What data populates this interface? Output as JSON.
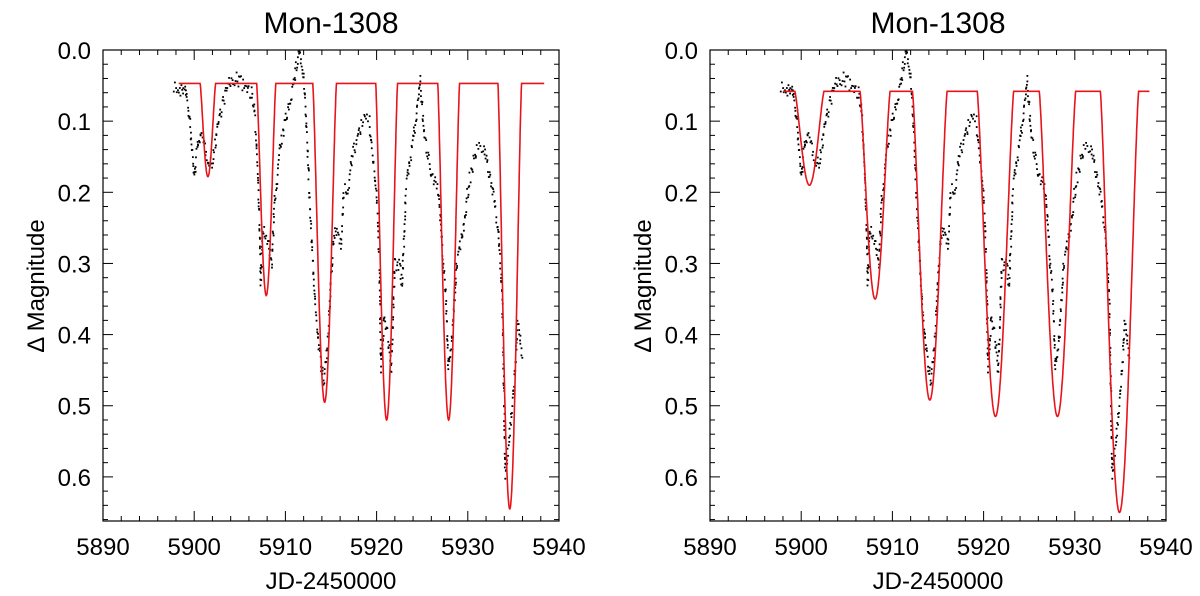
{
  "chart_data": [
    {
      "type": "scatter",
      "title": "Mon-1308",
      "xlabel": "JD-2450000",
      "ylabel": "Δ Magnitude",
      "xlim": [
        5890,
        5940
      ],
      "ylim": [
        0.0,
        0.662
      ],
      "y_inverted": true,
      "x_ticks": [
        "5890",
        "5900",
        "5910",
        "5920",
        "5930",
        "5940"
      ],
      "y_ticks": [
        "0.0",
        "0.1",
        "0.2",
        "0.3",
        "0.4",
        "0.5",
        "0.6"
      ],
      "colors": {
        "data": "#000000",
        "model": "#e8141b"
      },
      "observed": [
        [
          5897.8,
          0.05
        ],
        [
          5898.5,
          0.06
        ],
        [
          5899,
          0.05
        ],
        [
          5899.5,
          0.1
        ],
        [
          5900,
          0.18
        ],
        [
          5900.5,
          0.12
        ],
        [
          5901,
          0.13
        ],
        [
          5901.5,
          0.15
        ],
        [
          5902,
          0.16
        ],
        [
          5902.5,
          0.11
        ],
        [
          5903,
          0.08
        ],
        [
          5903.7,
          0.05
        ],
        [
          5904.5,
          0.04
        ],
        [
          5905.5,
          0.05
        ],
        [
          5906.3,
          0.06
        ],
        [
          5906.7,
          0.1
        ],
        [
          5907,
          0.18
        ],
        [
          5907.3,
          0.33
        ],
        [
          5907.5,
          0.25
        ],
        [
          5908,
          0.27
        ],
        [
          5908.5,
          0.3
        ],
        [
          5908.8,
          0.22
        ],
        [
          5909.3,
          0.15
        ],
        [
          5910,
          0.1
        ],
        [
          5911,
          0.04
        ],
        [
          5911.5,
          0.0
        ],
        [
          5912,
          0.04
        ],
        [
          5912.3,
          0.1
        ],
        [
          5912.6,
          0.2
        ],
        [
          5913,
          0.3
        ],
        [
          5913.3,
          0.36
        ],
        [
          5913.7,
          0.42
        ],
        [
          5914.2,
          0.47
        ],
        [
          5914.7,
          0.4
        ],
        [
          5915.1,
          0.3
        ],
        [
          5915.5,
          0.25
        ],
        [
          5916.1,
          0.27
        ],
        [
          5916.4,
          0.2
        ],
        [
          5917,
          0.19
        ],
        [
          5917.3,
          0.15
        ],
        [
          5918.5,
          0.1
        ],
        [
          5919.2,
          0.1
        ],
        [
          5919.5,
          0.14
        ],
        [
          5920,
          0.2
        ],
        [
          5920.3,
          0.3
        ],
        [
          5920.5,
          0.45
        ],
        [
          5920.8,
          0.38
        ],
        [
          5921.2,
          0.4
        ],
        [
          5921.6,
          0.45
        ],
        [
          5922,
          0.3
        ],
        [
          5922.5,
          0.3
        ],
        [
          5922.8,
          0.33
        ],
        [
          5923.2,
          0.2
        ],
        [
          5923.7,
          0.15
        ],
        [
          5924.3,
          0.1
        ],
        [
          5924.8,
          0.04
        ],
        [
          5925.2,
          0.12
        ],
        [
          5926,
          0.17
        ],
        [
          5926.8,
          0.2
        ],
        [
          5927.3,
          0.3
        ],
        [
          5927.6,
          0.35
        ],
        [
          5927.9,
          0.45
        ],
        [
          5928.3,
          0.4
        ],
        [
          5928.8,
          0.3
        ],
        [
          5929.5,
          0.25
        ],
        [
          5930.2,
          0.18
        ],
        [
          5931,
          0.14
        ],
        [
          5931.8,
          0.14
        ],
        [
          5932.3,
          0.17
        ],
        [
          5932.8,
          0.2
        ],
        [
          5933.3,
          0.25
        ],
        [
          5933.8,
          0.35
        ],
        [
          5934.1,
          0.6
        ],
        [
          5934.5,
          0.55
        ],
        [
          5935,
          0.48
        ],
        [
          5935.5,
          0.38
        ],
        [
          5936,
          0.43
        ]
      ],
      "model": {
        "range": [
          5898.3,
          5938.4
        ],
        "baseline": 0.047,
        "dips": [
          {
            "center": 5901.5,
            "depth": 0.178,
            "halfwidth": 0.85
          },
          {
            "center": 5907.9,
            "depth": 0.345,
            "halfwidth": 1.05
          },
          {
            "center": 5914.3,
            "depth": 0.495,
            "halfwidth": 1.3
          },
          {
            "center": 5921.1,
            "depth": 0.52,
            "halfwidth": 1.2
          },
          {
            "center": 5927.9,
            "depth": 0.52,
            "halfwidth": 1.2
          },
          {
            "center": 5934.6,
            "depth": 0.645,
            "halfwidth": 1.3
          }
        ]
      }
    },
    {
      "type": "scatter",
      "title": "Mon-1308",
      "xlabel": "JD-2450000",
      "ylabel": "Δ Magnitude",
      "xlim": [
        5890,
        5940
      ],
      "ylim": [
        0.0,
        0.662
      ],
      "y_inverted": true,
      "x_ticks": [
        "5890",
        "5900",
        "5910",
        "5920",
        "5930",
        "5940"
      ],
      "y_ticks": [
        "0.0",
        "0.1",
        "0.2",
        "0.3",
        "0.4",
        "0.5",
        "0.6"
      ],
      "colors": {
        "data": "#000000",
        "model": "#e8141b"
      },
      "observed": "same as panel 1",
      "model": {
        "range": [
          5898.0,
          5938.2
        ],
        "baseline": 0.058,
        "dips": [
          {
            "center": 5900.9,
            "depth": 0.19,
            "halfwidth": 1.6
          },
          {
            "center": 5908.1,
            "depth": 0.35,
            "halfwidth": 1.65
          },
          {
            "center": 5914.1,
            "depth": 0.492,
            "halfwidth": 1.9
          },
          {
            "center": 5921.3,
            "depth": 0.515,
            "halfwidth": 2.0
          },
          {
            "center": 5928.1,
            "depth": 0.515,
            "halfwidth": 2.0
          },
          {
            "center": 5934.9,
            "depth": 0.65,
            "halfwidth": 2.1
          }
        ]
      }
    }
  ]
}
